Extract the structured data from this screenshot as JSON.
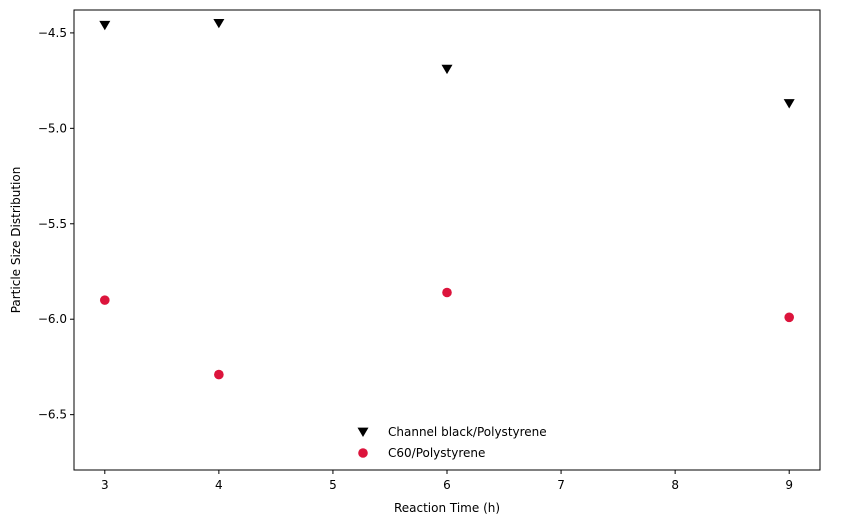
{
  "chart_data": {
    "type": "scatter",
    "title": "",
    "xlabel": "Reaction Time (h)",
    "ylabel": "Particle Size Distribution",
    "xlim": [
      2.73,
      9.27
    ],
    "ylim": [
      -6.79,
      -4.38
    ],
    "x_ticks": [
      3,
      4,
      5,
      6,
      7,
      8,
      9
    ],
    "x_tick_labels": [
      "3",
      "4",
      "5",
      "6",
      "7",
      "8",
      "9"
    ],
    "y_ticks": [
      -6.5,
      -6.0,
      -5.5,
      -5.0,
      -4.5
    ],
    "y_tick_labels": [
      "−6.5",
      "−6.0",
      "−5.5",
      "−5.0",
      "−4.5"
    ],
    "grid": false,
    "legend_position": "lower-center",
    "series": [
      {
        "name": "Channel black/Polystyrene",
        "marker": "triangle-down",
        "color": "#000000",
        "x": [
          3,
          4,
          6,
          9
        ],
        "y": [
          -4.46,
          -4.45,
          -4.69,
          -4.87
        ]
      },
      {
        "name": "C60/Polystyrene",
        "marker": "circle",
        "color": "#dc143c",
        "x": [
          3,
          4,
          6,
          9
        ],
        "y": [
          -5.9,
          -6.29,
          -5.86,
          -5.99
        ]
      }
    ]
  }
}
